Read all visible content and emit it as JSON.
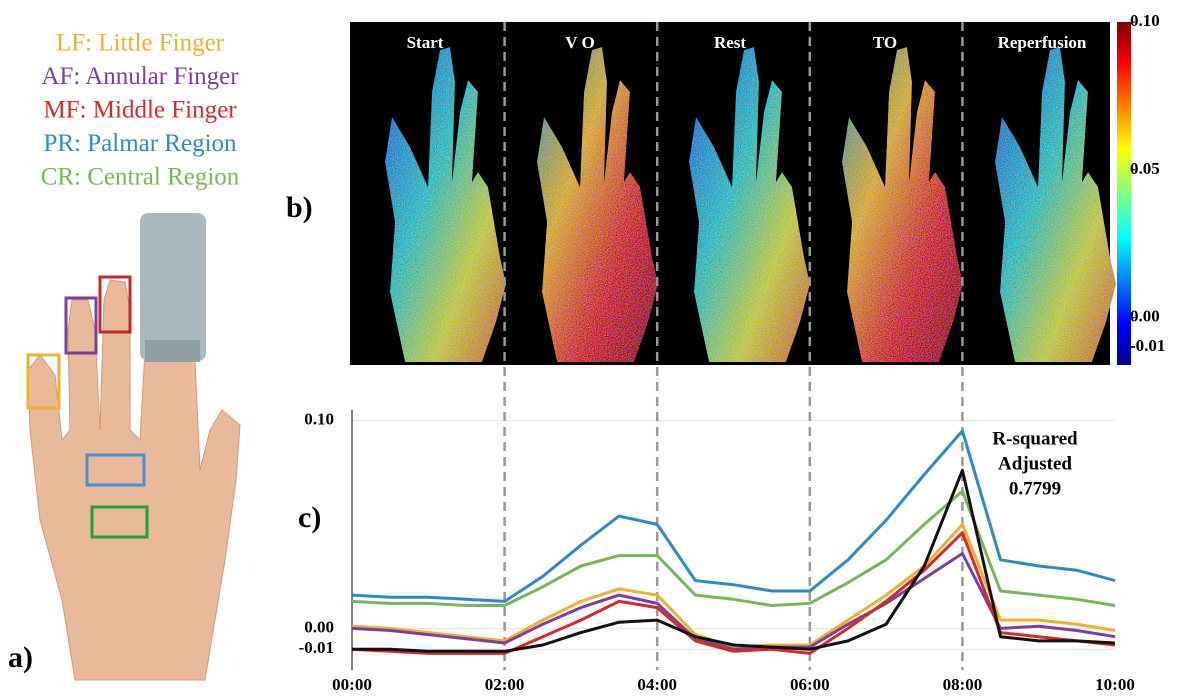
{
  "panel_labels": [
    "a)",
    "b)",
    "c)"
  ],
  "heatmap": {
    "labels": [
      "Start",
      "V O",
      "Rest",
      "TO",
      "Reperfusion"
    ],
    "colorbar": {
      "lim": [
        -0.016,
        0.1
      ],
      "ticks": [
        {
          "value": 0.1,
          "label": "0.10"
        },
        0.05,
        {
          "value": 0,
          "label": "0.00"
        },
        -0.01
      ]
    }
  },
  "chart_data": {
    "type": "line",
    "annotation": [
      "R-squared",
      "Adjusted",
      "0.7799"
    ],
    "x": [
      0,
      0.5,
      1,
      1.5,
      2,
      2.5,
      3,
      3.5,
      4,
      4.5,
      5,
      5.5,
      6,
      6.5,
      7,
      7.5,
      8,
      8.5,
      9,
      9.5,
      10
    ],
    "xlim": [
      0,
      10
    ],
    "xticks": [
      {
        "value": 0,
        "label": "00:00"
      },
      {
        "value": 2,
        "label": "02:00"
      },
      {
        "value": 4,
        "label": "04:00"
      },
      {
        "value": 6,
        "label": "06:00"
      },
      {
        "value": 8,
        "label": "08:00"
      },
      {
        "value": 10,
        "label": "10:00"
      }
    ],
    "ylim": [
      -0.02,
      0.105
    ],
    "yticks": [
      {
        "value": 0.1,
        "label": "0.10"
      },
      {
        "value": 0,
        "label": "0.00"
      },
      -0.01
    ],
    "grid": true,
    "series": [
      {
        "name": "LF: Little Finger",
        "color": "#f0b030",
        "values": [
          0.001,
          0.0,
          -0.002,
          -0.004,
          -0.006,
          0.004,
          0.013,
          0.019,
          0.016,
          -0.003,
          -0.009,
          -0.008,
          -0.008,
          0.004,
          0.016,
          0.03,
          0.05,
          0.004,
          0.004,
          0.002,
          -0.001
        ]
      },
      {
        "name": "AF: Annular Finger",
        "color": "#7b3f9e",
        "values": [
          0.0,
          -0.001,
          -0.003,
          -0.005,
          -0.007,
          0.002,
          0.01,
          0.016,
          0.012,
          -0.005,
          -0.01,
          -0.009,
          -0.009,
          0.002,
          0.012,
          0.024,
          0.036,
          0.0,
          0.001,
          -0.001,
          -0.004
        ]
      },
      {
        "name": "MF: Middle Finger",
        "color": "#d42a2a",
        "values": [
          -0.01,
          -0.011,
          -0.012,
          -0.012,
          -0.012,
          -0.004,
          0.004,
          0.013,
          0.01,
          -0.006,
          -0.011,
          -0.01,
          -0.012,
          0.0,
          0.013,
          0.028,
          0.046,
          -0.002,
          -0.004,
          -0.006,
          -0.008
        ]
      },
      {
        "name": "PR: Palmar Region",
        "color": "#2f8ac4",
        "values": [
          0.016,
          0.015,
          0.015,
          0.014,
          0.013,
          0.025,
          0.04,
          0.054,
          0.05,
          0.023,
          0.021,
          0.018,
          0.018,
          0.033,
          0.052,
          0.074,
          0.095,
          0.033,
          0.03,
          0.028,
          0.023
        ]
      },
      {
        "name": "CR: Central Region",
        "color": "#7ab55c",
        "values": [
          0.013,
          0.012,
          0.012,
          0.011,
          0.011,
          0.02,
          0.03,
          0.035,
          0.035,
          0.016,
          0.014,
          0.011,
          0.012,
          0.022,
          0.033,
          0.05,
          0.066,
          0.018,
          0.016,
          0.014,
          0.011
        ]
      },
      {
        "name": null,
        "color": "#111111",
        "values": [
          -0.01,
          -0.01,
          -0.011,
          -0.011,
          -0.011,
          -0.008,
          -0.002,
          0.003,
          0.004,
          -0.004,
          -0.008,
          -0.009,
          -0.01,
          -0.006,
          0.002,
          0.03,
          0.076,
          -0.004,
          -0.006,
          -0.006,
          -0.007
        ]
      }
    ]
  }
}
